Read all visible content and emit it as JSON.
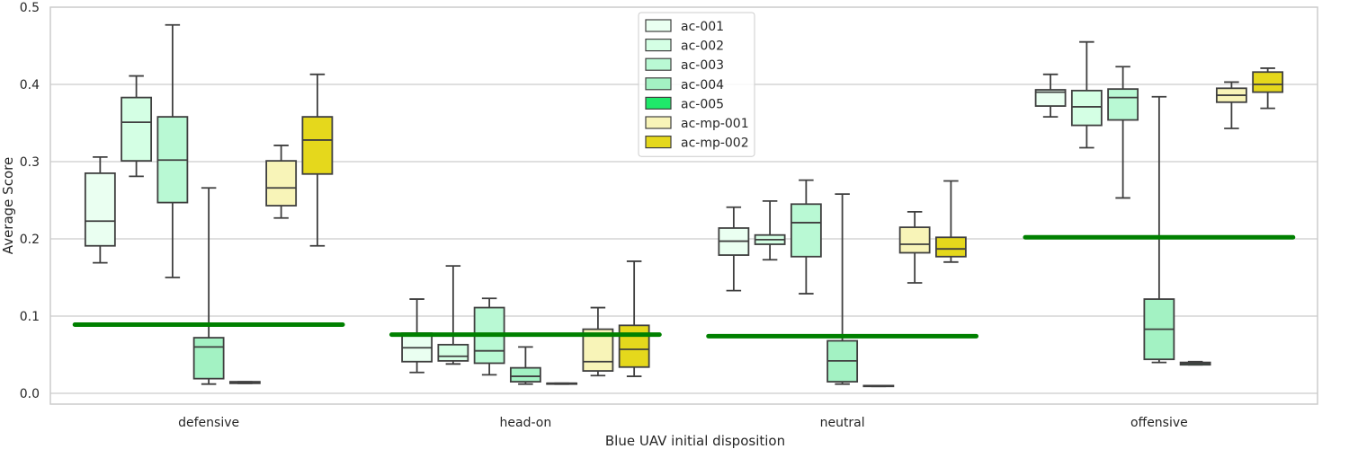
{
  "chart_data": {
    "type": "box",
    "xlabel": "Blue UAV initial disposition",
    "ylabel": "Average Score",
    "ylim": [
      -0.015,
      0.5
    ],
    "yticks": [
      "0.0",
      "0.1",
      "0.2",
      "0.3",
      "0.4",
      "0.5"
    ],
    "grid": "horizontal",
    "legend_position": "top-center",
    "categories": [
      "defensive",
      "head-on",
      "neutral",
      "offensive"
    ],
    "reference_line": {
      "color": "#008000",
      "values": [
        0.089,
        0.076,
        0.074,
        0.202
      ]
    },
    "series": [
      {
        "name": "ac-001",
        "color": "#eafff1",
        "boxes": [
          {
            "whislo": 0.169,
            "q1": 0.191,
            "med": 0.223,
            "q3": 0.285,
            "whishi": 0.306
          },
          {
            "whislo": 0.027,
            "q1": 0.041,
            "med": 0.059,
            "q3": 0.078,
            "whishi": 0.122
          },
          {
            "whislo": 0.133,
            "q1": 0.179,
            "med": 0.197,
            "q3": 0.214,
            "whishi": 0.241
          },
          {
            "whislo": 0.358,
            "q1": 0.372,
            "med": 0.39,
            "q3": 0.393,
            "whishi": 0.413
          }
        ]
      },
      {
        "name": "ac-002",
        "color": "#d4ffe4",
        "boxes": [
          {
            "whislo": 0.281,
            "q1": 0.301,
            "med": 0.351,
            "q3": 0.383,
            "whishi": 0.411
          },
          {
            "whislo": 0.038,
            "q1": 0.042,
            "med": 0.048,
            "q3": 0.063,
            "whishi": 0.165
          },
          {
            "whislo": 0.173,
            "q1": 0.193,
            "med": 0.199,
            "q3": 0.205,
            "whishi": 0.249
          },
          {
            "whislo": 0.318,
            "q1": 0.347,
            "med": 0.371,
            "q3": 0.392,
            "whishi": 0.455
          }
        ]
      },
      {
        "name": "ac-003",
        "color": "#b9f9d4",
        "boxes": [
          {
            "whislo": 0.15,
            "q1": 0.247,
            "med": 0.302,
            "q3": 0.358,
            "whishi": 0.477
          },
          {
            "whislo": 0.024,
            "q1": 0.039,
            "med": 0.055,
            "q3": 0.111,
            "whishi": 0.123
          },
          {
            "whislo": 0.129,
            "q1": 0.177,
            "med": 0.221,
            "q3": 0.245,
            "whishi": 0.276
          },
          {
            "whislo": 0.253,
            "q1": 0.354,
            "med": 0.383,
            "q3": 0.394,
            "whishi": 0.423
          }
        ]
      },
      {
        "name": "ac-004",
        "color": "#a3f2c3",
        "boxes": [
          {
            "whislo": 0.012,
            "q1": 0.019,
            "med": 0.06,
            "q3": 0.072,
            "whishi": 0.266
          },
          {
            "whislo": 0.012,
            "q1": 0.015,
            "med": 0.022,
            "q3": 0.033,
            "whishi": 0.06
          },
          {
            "whislo": 0.012,
            "q1": 0.015,
            "med": 0.042,
            "q3": 0.068,
            "whishi": 0.258
          },
          {
            "whislo": 0.04,
            "q1": 0.044,
            "med": 0.083,
            "q3": 0.122,
            "whishi": 0.384
          }
        ]
      },
      {
        "name": "ac-005",
        "color": "#1fe86a",
        "boxes": [
          {
            "whislo": 0.013,
            "q1": 0.013,
            "med": 0.014,
            "q3": 0.015,
            "whishi": 0.015
          },
          {
            "whislo": 0.012,
            "q1": 0.012,
            "med": 0.013,
            "q3": 0.013,
            "whishi": 0.013
          },
          {
            "whislo": 0.009,
            "q1": 0.009,
            "med": 0.01,
            "q3": 0.01,
            "whishi": 0.01
          },
          {
            "whislo": 0.037,
            "q1": 0.037,
            "med": 0.039,
            "q3": 0.04,
            "whishi": 0.041
          }
        ]
      },
      {
        "name": "ac-mp-001",
        "color": "#f8f4b8",
        "boxes": [
          {
            "whislo": 0.227,
            "q1": 0.243,
            "med": 0.266,
            "q3": 0.301,
            "whishi": 0.321
          },
          {
            "whislo": 0.023,
            "q1": 0.029,
            "med": 0.041,
            "q3": 0.083,
            "whishi": 0.111
          },
          {
            "whislo": 0.143,
            "q1": 0.182,
            "med": 0.193,
            "q3": 0.215,
            "whishi": 0.235
          },
          {
            "whislo": 0.343,
            "q1": 0.377,
            "med": 0.386,
            "q3": 0.395,
            "whishi": 0.403
          }
        ]
      },
      {
        "name": "ac-mp-002",
        "color": "#e5d81c",
        "boxes": [
          {
            "whislo": 0.191,
            "q1": 0.284,
            "med": 0.328,
            "q3": 0.358,
            "whishi": 0.413
          },
          {
            "whislo": 0.022,
            "q1": 0.034,
            "med": 0.057,
            "q3": 0.088,
            "whishi": 0.171
          },
          {
            "whislo": 0.17,
            "q1": 0.177,
            "med": 0.187,
            "q3": 0.202,
            "whishi": 0.275
          },
          {
            "whislo": 0.369,
            "q1": 0.39,
            "med": 0.4,
            "q3": 0.416,
            "whishi": 0.421
          }
        ]
      }
    ]
  }
}
